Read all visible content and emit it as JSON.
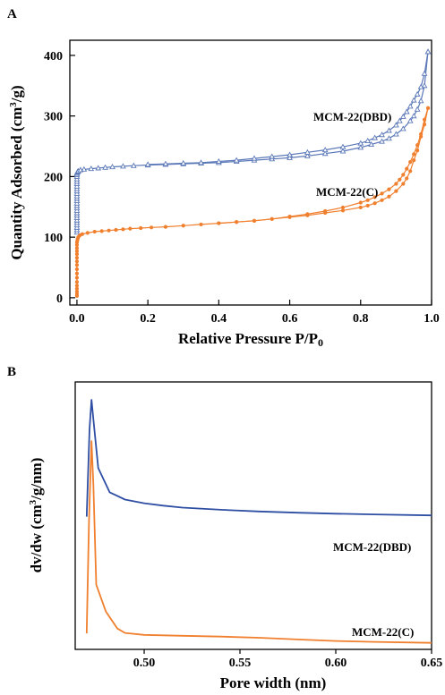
{
  "chart_data": [
    {
      "panel": "A",
      "type": "line",
      "xlabel": "Relative Pressure P/P0",
      "ylabel": "Quantity Adsorbed (cm3/g)",
      "xlim": [
        -0.02,
        1.0
      ],
      "ylim": [
        -12,
        425
      ],
      "xticks": [
        0.0,
        0.2,
        0.4,
        0.6,
        0.8,
        1.0
      ],
      "xtick_labels": [
        "0.0",
        "0.2",
        "0.4",
        "0.6",
        "0.8",
        "1.0"
      ],
      "yticks": [
        0,
        100,
        200,
        300,
        400
      ],
      "ytick_labels": [
        "0",
        "100",
        "200",
        "300",
        "400"
      ],
      "series": [
        {
          "name": "MCM-22(DBD)",
          "color": "#5b78b8",
          "marker": "open-triangle",
          "branches": [
            {
              "x": [
                0.0,
                0.0,
                0.0,
                0.0,
                0.0,
                0.0,
                0.0,
                0.0,
                0.0,
                0.0,
                0.0,
                0.0,
                0.0,
                0.0,
                0.0,
                0.0,
                0.0,
                0.0,
                0.0,
                0.0,
                0.0,
                0.0,
                0.0,
                0.0,
                0.0,
                0.0,
                0.001,
                0.002,
                0.004,
                0.01,
                0.02,
                0.04,
                0.06,
                0.08,
                0.1,
                0.13,
                0.16,
                0.2,
                0.25,
                0.3,
                0.35,
                0.4,
                0.45,
                0.5,
                0.55,
                0.6,
                0.65,
                0.7,
                0.75,
                0.8,
                0.83,
                0.86,
                0.88,
                0.9,
                0.92,
                0.94,
                0.95,
                0.96,
                0.97,
                0.98,
                0.99
              ],
              "y": [
                108,
                112,
                116,
                120,
                124,
                128,
                132,
                136,
                140,
                144,
                148,
                152,
                156,
                160,
                164,
                168,
                172,
                176,
                180,
                184,
                188,
                192,
                196,
                200,
                203,
                205,
                207,
                208,
                209,
                211,
                212,
                213,
                214,
                215,
                216,
                217,
                218,
                219,
                220,
                221,
                222,
                223,
                225,
                227,
                229,
                231,
                234,
                238,
                242,
                248,
                253,
                258,
                263,
                270,
                279,
                292,
                300,
                311,
                325,
                350,
                406
              ]
            },
            {
              "x": [
                0.99,
                0.98,
                0.97,
                0.96,
                0.95,
                0.94,
                0.93,
                0.92,
                0.91,
                0.9,
                0.88,
                0.86,
                0.84,
                0.82,
                0.8,
                0.75,
                0.7,
                0.65,
                0.6,
                0.55,
                0.5,
                0.45,
                0.4,
                0.35,
                0.3,
                0.25,
                0.2
              ],
              "y": [
                406,
                370,
                348,
                336,
                326,
                316,
                307,
                299,
                292,
                285,
                276,
                269,
                264,
                259,
                255,
                249,
                244,
                240,
                236,
                233,
                230,
                227,
                225,
                223,
                222,
                221,
                220
              ]
            }
          ]
        },
        {
          "name": "MCM-22(C)",
          "color": "#f07f2e",
          "marker": "filled-circle",
          "branches": [
            {
              "x": [
                0.0,
                0.0,
                0.0,
                0.0,
                0.0,
                0.0,
                0.0,
                0.0,
                0.0,
                0.0,
                0.0,
                0.0,
                0.0,
                0.0,
                0.0,
                0.0,
                0.0,
                0.001,
                0.002,
                0.004,
                0.008,
                0.015,
                0.03,
                0.05,
                0.07,
                0.09,
                0.11,
                0.13,
                0.15,
                0.18,
                0.21,
                0.25,
                0.3,
                0.35,
                0.4,
                0.45,
                0.5,
                0.55,
                0.6,
                0.65,
                0.7,
                0.75,
                0.8,
                0.82,
                0.84,
                0.86,
                0.88,
                0.9,
                0.92,
                0.93,
                0.94,
                0.95,
                0.96,
                0.97,
                0.98,
                0.99
              ],
              "y": [
                3,
                6,
                10,
                15,
                20,
                26,
                33,
                40,
                47,
                54,
                60,
                66,
                72,
                77,
                82,
                87,
                91,
                94,
                97,
                100,
                103,
                105,
                107,
                109,
                110,
                111,
                112,
                113,
                114,
                115,
                116,
                117,
                119,
                121,
                123,
                125,
                127,
                130,
                133,
                136,
                140,
                144,
                149,
                152,
                156,
                161,
                167,
                176,
                188,
                197,
                209,
                227,
                243,
                266,
                286,
                313
              ]
            },
            {
              "x": [
                0.99,
                0.98,
                0.97,
                0.96,
                0.95,
                0.94,
                0.93,
                0.92,
                0.91,
                0.9,
                0.88,
                0.86,
                0.84,
                0.82,
                0.8,
                0.75,
                0.7,
                0.65,
                0.6,
                0.55,
                0.5,
                0.45,
                0.4
              ],
              "y": [
                313,
                294,
                270,
                252,
                237,
                224,
                213,
                203,
                195,
                188,
                179,
                172,
                166,
                161,
                157,
                149,
                143,
                138,
                134,
                130,
                127,
                125,
                123
              ]
            }
          ]
        }
      ]
    },
    {
      "panel": "B",
      "type": "line",
      "xlabel": "Pore width (nm)",
      "ylabel": "dv/dw (cm3/g/nm)",
      "xlim": [
        0.464,
        0.65
      ],
      "ylim": [
        0,
        1
      ],
      "xticks": [
        0.5,
        0.55,
        0.6,
        0.65
      ],
      "xtick_labels": [
        "0.50",
        "0.55",
        "0.60",
        "0.65"
      ],
      "series": [
        {
          "name": "MCM-22(DBD)",
          "color": "#2e4ea3",
          "x": [
            0.47,
            0.4715,
            0.4725,
            0.4735,
            0.476,
            0.482,
            0.49,
            0.5,
            0.51,
            0.52,
            0.54,
            0.56,
            0.58,
            0.6,
            0.62,
            0.65
          ],
          "y": [
            0.52,
            0.88,
            1.0,
            0.92,
            0.72,
            0.62,
            0.59,
            0.575,
            0.565,
            0.557,
            0.548,
            0.541,
            0.536,
            0.532,
            0.529,
            0.525
          ]
        },
        {
          "name": "MCM-22(C)",
          "color": "#f07f2e",
          "x": [
            0.47,
            0.4712,
            0.4725,
            0.4735,
            0.475,
            0.48,
            0.486,
            0.49,
            0.5,
            0.52,
            0.54,
            0.56,
            0.58,
            0.6,
            0.62,
            0.65
          ],
          "y": [
            0.04,
            0.5,
            0.83,
            0.65,
            0.24,
            0.13,
            0.06,
            0.042,
            0.034,
            0.03,
            0.027,
            0.022,
            0.015,
            0.009,
            0.005,
            0.001
          ]
        }
      ]
    }
  ]
}
